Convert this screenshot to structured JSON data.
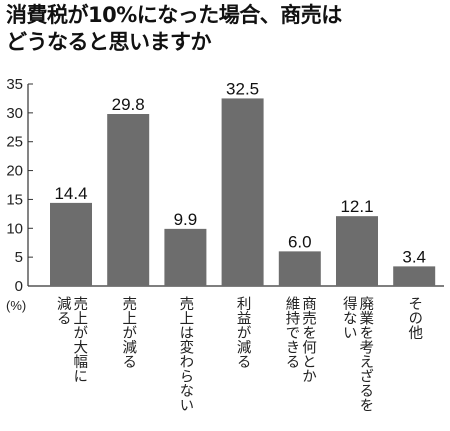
{
  "title_lines": [
    "消費税が10%になった場合、商売は",
    "どうなると思いますか"
  ],
  "chart_data": {
    "type": "bar",
    "title": "消費税が10%になった場合、商売はどうなると思いますか",
    "xlabel": "",
    "ylabel": "(%)",
    "ylim": [
      0,
      35
    ],
    "yticks": [
      0,
      5,
      10,
      15,
      20,
      25,
      30,
      35
    ],
    "grid": false,
    "bar_color": "#6d6d6d",
    "categories": [
      [
        "売上が大幅に",
        "減る"
      ],
      [
        "売上が減る"
      ],
      [
        "売上は変わらない"
      ],
      [
        "利益が減る"
      ],
      [
        "商売を何とか",
        "維持できる"
      ],
      [
        "廃業を考えざるを",
        "得ない"
      ],
      [
        "その他"
      ]
    ],
    "values": [
      14.4,
      29.8,
      9.9,
      32.5,
      6.0,
      12.1,
      3.4
    ],
    "value_labels": [
      "14.4",
      "29.8",
      "9.9",
      "32.5",
      "6.0",
      "12.1",
      "3.4"
    ]
  }
}
